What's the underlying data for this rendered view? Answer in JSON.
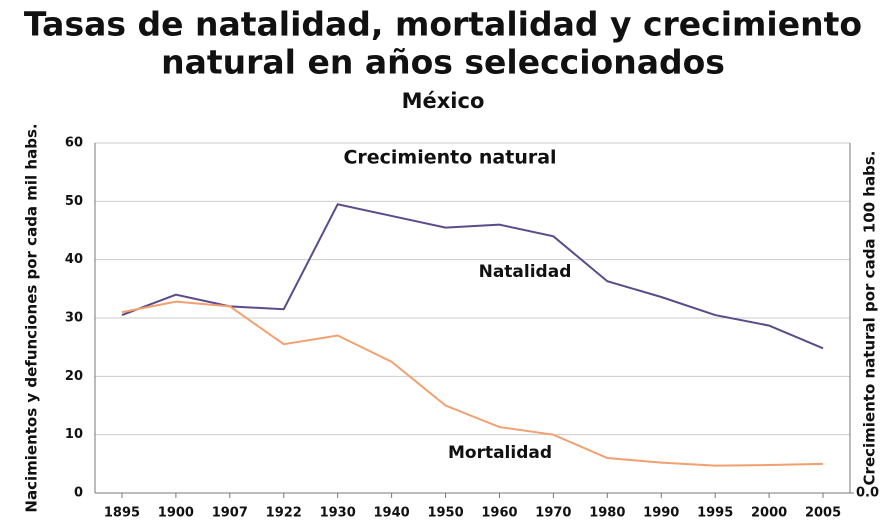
{
  "chart_data": {
    "type": "line",
    "title": [
      "Tasas de natalidad, mortalidad y crecimiento",
      "natural en años seleccionados"
    ],
    "subtitle": "México",
    "ylabel": "Nacimientos y defunciones por cada mil habs.",
    "y2label": "Crecimiento natural por cada 100 habs.",
    "annotations": [
      "Crecimiento natural"
    ],
    "categories": [
      "1895",
      "1900",
      "1907",
      "1922",
      "1930",
      "1940",
      "1950",
      "1960",
      "1970",
      "1980",
      "1990",
      "1995",
      "2000",
      "2005"
    ],
    "series": [
      {
        "name": "Natalidad",
        "color": "#5b4b8a",
        "values": [
          30.5,
          34,
          32,
          31.5,
          49.5,
          47.5,
          45.5,
          46,
          44,
          36.3,
          33.6,
          30.5,
          28.7,
          24.8
        ]
      },
      {
        "name": "Mortalidad",
        "color": "#f2a070",
        "values": [
          31,
          32.8,
          32,
          25.5,
          27,
          22.5,
          15,
          11.3,
          10,
          6,
          5.2,
          4.7,
          4.8,
          5
        ]
      }
    ],
    "ylim": [
      0,
      60
    ],
    "yticks": [
      0,
      10,
      20,
      30,
      40,
      50,
      60
    ],
    "y2lim": [
      0,
      6
    ],
    "y2ticks": [
      {
        "value": 0,
        "label": "0.0"
      }
    ],
    "grid": true
  }
}
